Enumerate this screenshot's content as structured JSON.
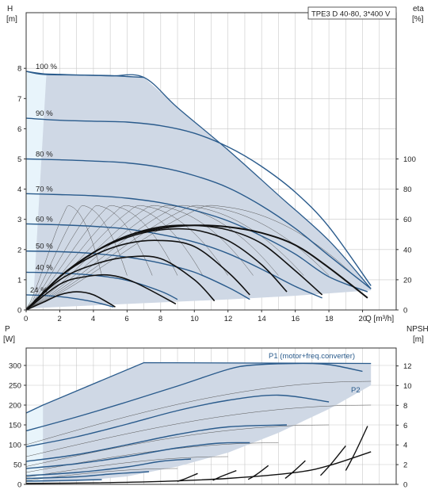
{
  "chart_data": [
    {
      "type": "line",
      "panel": "head-and-efficiency",
      "title": "TPE3 D 40-80, 3*400 V",
      "ylabel": "H",
      "yunit": "[m]",
      "y2label": "eta",
      "y2unit": "[%]",
      "xlabel": "Q",
      "xunit": "[m³/h]",
      "xlim": [
        0,
        22
      ],
      "ylim": [
        0,
        9
      ],
      "y2lim": [
        0,
        180
      ],
      "x_ticks": [
        0,
        2,
        4,
        6,
        8,
        10,
        12,
        14,
        16,
        18,
        20
      ],
      "y_ticks": [
        0,
        1,
        2,
        3,
        4,
        5,
        6,
        7,
        8
      ],
      "y2_ticks": [
        0,
        20,
        40,
        60,
        80,
        100
      ],
      "grid": true,
      "operating_area_envelope": {
        "max_curve": [
          [
            0,
            7.9
          ],
          [
            1,
            7.8
          ],
          [
            3,
            7.78
          ],
          [
            5,
            7.75
          ],
          [
            7,
            7.7
          ],
          [
            9,
            6.7
          ],
          [
            12,
            5.3
          ],
          [
            15,
            3.8
          ],
          [
            18,
            2.3
          ],
          [
            20.5,
            0.7
          ]
        ],
        "min_flow_line": [
          [
            0.0,
            0.0
          ],
          [
            1.2,
            7.8
          ]
        ],
        "min_curve": [
          [
            0,
            0.05
          ],
          [
            4,
            0.15
          ],
          [
            8,
            0.25
          ],
          [
            12,
            0.35
          ],
          [
            16,
            0.47
          ],
          [
            20.5,
            0.65
          ]
        ]
      },
      "series": [
        {
          "name": "100 %",
          "x": [
            0,
            1,
            2,
            3,
            4,
            5,
            6,
            7
          ],
          "y": [
            7.9,
            7.82,
            7.8,
            7.78,
            7.77,
            7.76,
            7.73,
            7.7
          ]
        },
        {
          "name": "90 %",
          "x": [
            0,
            2,
            4,
            6,
            8,
            10,
            12,
            14,
            16,
            18,
            20.5
          ],
          "y": [
            6.35,
            6.28,
            6.25,
            6.22,
            6.1,
            5.85,
            5.4,
            4.75,
            3.9,
            2.75,
            0.8
          ]
        },
        {
          "name": "80 %",
          "x": [
            0,
            2,
            4,
            6,
            8,
            10,
            12,
            14,
            16,
            18,
            20.5
          ],
          "y": [
            5.0,
            4.97,
            4.93,
            4.87,
            4.72,
            4.45,
            4.05,
            3.45,
            2.7,
            1.8,
            0.7
          ]
        },
        {
          "name": "70 %",
          "x": [
            0,
            2,
            4,
            6,
            8,
            10,
            12,
            14,
            16,
            18,
            20.3
          ],
          "y": [
            3.85,
            3.82,
            3.78,
            3.7,
            3.55,
            3.3,
            2.95,
            2.45,
            1.85,
            1.1,
            0.6
          ]
        },
        {
          "name": "60 %",
          "x": [
            0,
            2,
            4,
            6,
            8,
            10,
            12,
            14,
            16,
            17.6
          ],
          "y": [
            2.85,
            2.82,
            2.77,
            2.68,
            2.5,
            2.25,
            1.87,
            1.35,
            0.78,
            0.4
          ]
        },
        {
          "name": "50 %",
          "x": [
            0,
            2,
            4,
            6,
            8,
            10,
            12,
            13.3
          ],
          "y": [
            1.95,
            1.93,
            1.87,
            1.75,
            1.55,
            1.25,
            0.75,
            0.35
          ]
        },
        {
          "name": "40 %",
          "x": [
            0,
            2,
            4,
            6,
            8,
            9.0
          ],
          "y": [
            1.25,
            1.22,
            1.15,
            0.98,
            0.62,
            0.35
          ]
        },
        {
          "name": "24 %",
          "x": [
            0,
            1,
            2,
            3,
            4,
            5.2
          ],
          "y": [
            0.5,
            0.48,
            0.44,
            0.37,
            0.27,
            0.1
          ]
        }
      ],
      "efficiency_series": [
        {
          "x": [
            0,
            1,
            2,
            3,
            4,
            5.3
          ],
          "y": [
            0,
            5,
            10,
            12,
            10,
            2
          ]
        },
        {
          "x": [
            0,
            2,
            3.5,
            5,
            6.5,
            8.9
          ],
          "y": [
            0,
            17,
            22,
            23,
            18,
            4
          ]
        },
        {
          "x": [
            0,
            2,
            4,
            6,
            8,
            10,
            11.2
          ],
          "y": [
            0,
            20,
            30,
            35,
            34,
            20,
            6
          ]
        },
        {
          "x": [
            0,
            2,
            4,
            6,
            8,
            10,
            12,
            13.3
          ],
          "y": [
            0,
            22,
            36,
            44,
            46,
            42,
            25,
            10
          ]
        },
        {
          "x": [
            0,
            2,
            4,
            6,
            8,
            10,
            12,
            14,
            15.5
          ],
          "y": [
            0,
            22,
            38,
            48,
            53,
            53,
            46,
            30,
            12
          ]
        },
        {
          "x": [
            0,
            2,
            4,
            6,
            8,
            10,
            12,
            14,
            16,
            17.6
          ],
          "y": [
            0,
            22,
            38,
            49,
            55,
            56,
            53,
            44,
            26,
            10
          ]
        },
        {
          "x": [
            0,
            2,
            4,
            6,
            8,
            10,
            12,
            14,
            16,
            18,
            20.3
          ],
          "y": [
            0,
            22,
            38,
            49,
            54,
            56,
            55,
            51,
            43,
            28,
            8
          ]
        }
      ]
    },
    {
      "type": "line",
      "panel": "power-and-npsh",
      "ylabel": "P",
      "yunit": "[W]",
      "y2label": "NPSH",
      "y2unit": "[m]",
      "xlim": [
        0,
        22
      ],
      "ylim": [
        0,
        325
      ],
      "y2lim": [
        0,
        13
      ],
      "y_ticks": [
        0,
        50,
        100,
        150,
        200,
        250,
        300
      ],
      "y2_ticks": [
        0,
        2,
        4,
        6,
        8,
        10,
        12
      ],
      "grid": true,
      "annotations": [
        "P1 (motor+freq.converter)",
        "P2"
      ],
      "operating_area_envelope": [
        [
          0,
          180
        ],
        [
          1,
          200
        ],
        [
          7,
          307
        ],
        [
          14,
          307
        ],
        [
          18,
          307
        ],
        [
          20.5,
          305
        ],
        [
          20.5,
          250
        ],
        [
          18,
          190
        ],
        [
          15,
          130
        ],
        [
          12,
          80
        ],
        [
          9,
          45
        ],
        [
          6,
          20
        ],
        [
          3,
          8
        ],
        [
          0,
          5
        ]
      ],
      "series": [
        {
          "name": "P1 (motor+freq.converter)",
          "x": [
            0,
            3,
            6,
            9,
            12,
            13.5,
            16,
            18,
            20
          ],
          "y": [
            135,
            170,
            208,
            248,
            290,
            301,
            305,
            302,
            285
          ]
        },
        {
          "x": [
            0,
            3,
            6,
            9,
            12,
            15,
            18
          ],
          "y": [
            95,
            120,
            152,
            186,
            212,
            225,
            208
          ]
        },
        {
          "x": [
            0,
            3,
            6,
            9,
            12,
            15.5
          ],
          "y": [
            58,
            75,
            100,
            126,
            145,
            150
          ]
        },
        {
          "x": [
            0,
            3,
            6,
            9,
            11.5,
            13.3
          ],
          "y": [
            40,
            52,
            70,
            92,
            104,
            105
          ]
        },
        {
          "x": [
            0,
            3,
            6,
            8,
            9.8
          ],
          "y": [
            22,
            30,
            44,
            58,
            64
          ]
        },
        {
          "x": [
            0,
            3,
            5,
            7.3
          ],
          "y": [
            15,
            19,
            26,
            32
          ]
        },
        {
          "x": [
            0,
            2,
            4.5
          ],
          "y": [
            8,
            9.5,
            12
          ]
        }
      ],
      "npsh_series": [
        {
          "x": [
            9.0,
            9.5,
            10.2
          ],
          "y": [
            0.3,
            0.6,
            1.1
          ]
        },
        {
          "x": [
            11.1,
            11.6,
            12.5
          ],
          "y": [
            0.4,
            0.8,
            1.4
          ]
        },
        {
          "x": [
            13.2,
            13.7,
            14.4
          ],
          "y": [
            0.5,
            1.0,
            1.9
          ]
        },
        {
          "x": [
            15.4,
            15.9,
            16.6
          ],
          "y": [
            0.6,
            1.3,
            2.4
          ]
        },
        {
          "x": [
            17.5,
            18.1,
            19.0
          ],
          "y": [
            0.9,
            2.0,
            3.9
          ]
        },
        {
          "x": [
            19.0,
            19.5,
            20.3
          ],
          "y": [
            1.4,
            3.0,
            5.9
          ]
        },
        {
          "x": [
            0,
            4,
            8,
            12,
            16,
            18,
            20.5
          ],
          "y": [
            0.1,
            0.15,
            0.3,
            0.6,
            1.2,
            1.9,
            3.3
          ]
        }
      ]
    }
  ]
}
